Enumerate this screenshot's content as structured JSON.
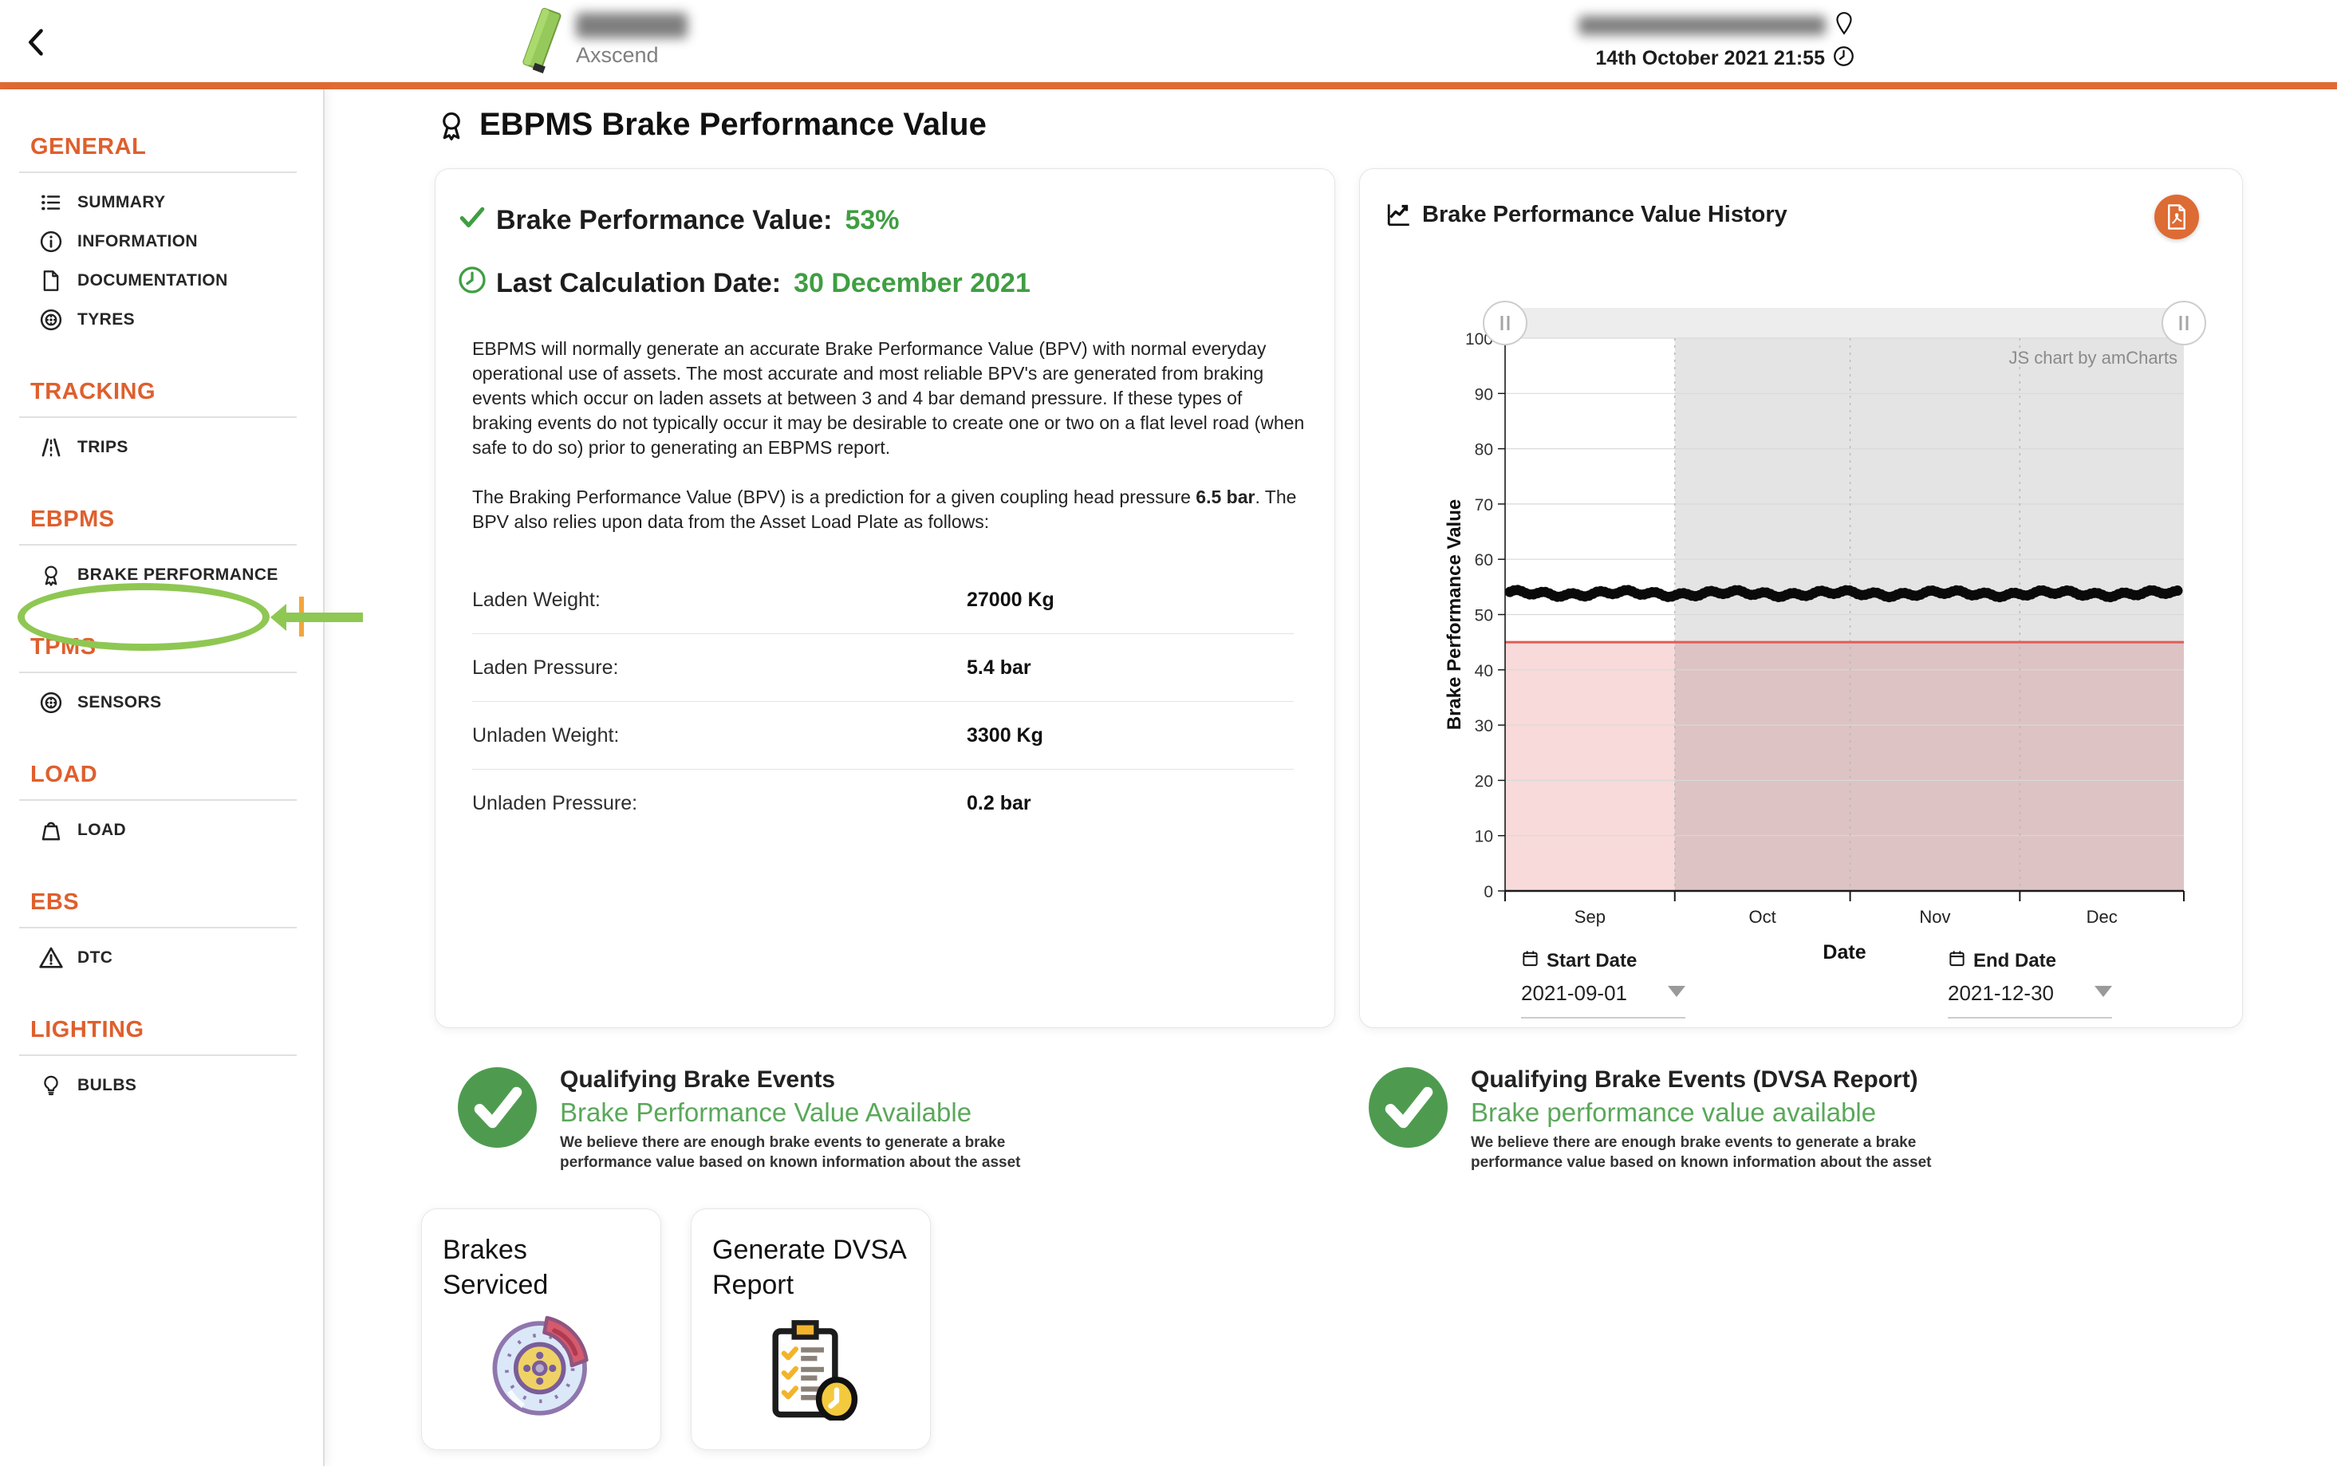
{
  "header": {
    "brand_name": "Axscend",
    "datetime": "14th October 2021 21:55"
  },
  "sidebar": {
    "sections": [
      {
        "title": "GENERAL",
        "items": [
          {
            "icon": "list-icon",
            "label": "SUMMARY"
          },
          {
            "icon": "info-icon",
            "label": "INFORMATION"
          },
          {
            "icon": "document-icon",
            "label": "DOCUMENTATION"
          },
          {
            "icon": "tyre-icon",
            "label": "TYRES"
          }
        ]
      },
      {
        "title": "TRACKING",
        "items": [
          {
            "icon": "road-icon",
            "label": "TRIPS"
          }
        ]
      },
      {
        "title": "EBPMS",
        "items": [
          {
            "icon": "award-icon",
            "label": "BRAKE PERFORMANCE",
            "active": true
          }
        ]
      },
      {
        "title": "TPMS",
        "items": [
          {
            "icon": "tyre-icon",
            "label": "SENSORS"
          }
        ]
      },
      {
        "title": "LOAD",
        "items": [
          {
            "icon": "weight-icon",
            "label": "LOAD"
          }
        ]
      },
      {
        "title": "EBS",
        "items": [
          {
            "icon": "warning-icon",
            "label": "DTC"
          }
        ]
      },
      {
        "title": "LIGHTING",
        "items": [
          {
            "icon": "bulb-icon",
            "label": "BULBS"
          }
        ]
      }
    ]
  },
  "page": {
    "title": "EBPMS Brake Performance Value"
  },
  "bpv_card": {
    "bpv_label": "Brake Performance Value:",
    "bpv_value": "53%",
    "calc_label": "Last Calculation Date:",
    "calc_value": "30 December 2021",
    "paragraph1": "EBPMS will normally generate an accurate Brake Performance Value (BPV) with normal everyday operational use of assets. The most accurate and most reliable BPV's are generated from braking events which occur on laden assets at between 3 and 4 bar demand pressure. If these types of braking events do not typically occur it may be desirable to create one or two on a flat level road (when safe to do so) prior to generating an EBPMS report.",
    "paragraph2_prefix": "The Braking Performance Value (BPV) is a prediction for a given coupling head pressure ",
    "paragraph2_bold": "6.5 bar",
    "paragraph2_suffix": ". The BPV also relies upon data from the Asset Load Plate as follows:",
    "table": {
      "rows": [
        [
          "Laden Weight:",
          "27000 Kg"
        ],
        [
          "Laden Pressure:",
          "5.4 bar"
        ],
        [
          "Unladen Weight:",
          "3300 Kg"
        ],
        [
          "Unladen Pressure:",
          "0.2 bar"
        ]
      ]
    }
  },
  "chart_card": {
    "title": "Brake Performance Value History",
    "start_date_label": "Start Date",
    "start_date_value": "2021-09-01",
    "end_date_label": "End Date",
    "end_date_value": "2021-12-30"
  },
  "chart_data": {
    "type": "scatter",
    "title": "Brake Performance Value History",
    "xlabel": "Date",
    "ylabel": "Brake Performance Value",
    "watermark": "JS chart by amCharts",
    "ylim": [
      0,
      100
    ],
    "y_ticks": [
      0,
      10,
      20,
      30,
      40,
      50,
      60,
      70,
      80,
      90,
      100
    ],
    "x_range": [
      "2021-09-01",
      "2021-12-30"
    ],
    "x_total_days": 120,
    "x_tick_day_offsets": [
      0,
      30,
      61,
      91,
      120
    ],
    "x_month_labels": [
      "Sep",
      "Oct",
      "Nov",
      "Dec"
    ],
    "x_month_label_day_centers": [
      15,
      45.5,
      76,
      105.5
    ],
    "series": [
      {
        "name": "Brake Performance Value",
        "style": "black-dots",
        "approx_constant_value": 53.8,
        "n_points": 170,
        "span": [
          "2021-09-01",
          "2021-12-30"
        ]
      }
    ],
    "threshold_line": {
      "y": 45,
      "color": "#e15b55"
    },
    "shaded_below_threshold": {
      "from": 0,
      "to": 45,
      "color": "#f8dada"
    },
    "highlight_region": {
      "from_day": 30,
      "to_day": 120,
      "color": "rgba(0,0,0,0.105)"
    },
    "grid": true,
    "scrollbar": {
      "position": "top",
      "handles": 2
    }
  },
  "qualifying": [
    {
      "title": "Qualifying Brake Events",
      "subtitle": "Brake Performance Value Available",
      "body": "We believe there are enough brake events to generate a brake performance value based on known information about the asset"
    },
    {
      "title": "Qualifying Brake Events (DVSA Report)",
      "subtitle": "Brake performance value available",
      "body": "We believe there are enough brake events to generate a brake performance value based on known information about the asset"
    }
  ],
  "actions": [
    {
      "label": "Brakes Serviced"
    },
    {
      "label": "Generate DVSA Report"
    }
  ],
  "colors": {
    "accent_orange": "#e06a33",
    "sidebar_orange": "#df5f2d",
    "annotation_green": "#8fc753",
    "active_bar_orange": "#f2a53d",
    "success_green": "#4e9b50",
    "value_green": "#3f9e42",
    "subtitle_green": "#5aa85a",
    "threshold_red": "#e15b55",
    "pdf_button_orange": "#dd6b34"
  }
}
